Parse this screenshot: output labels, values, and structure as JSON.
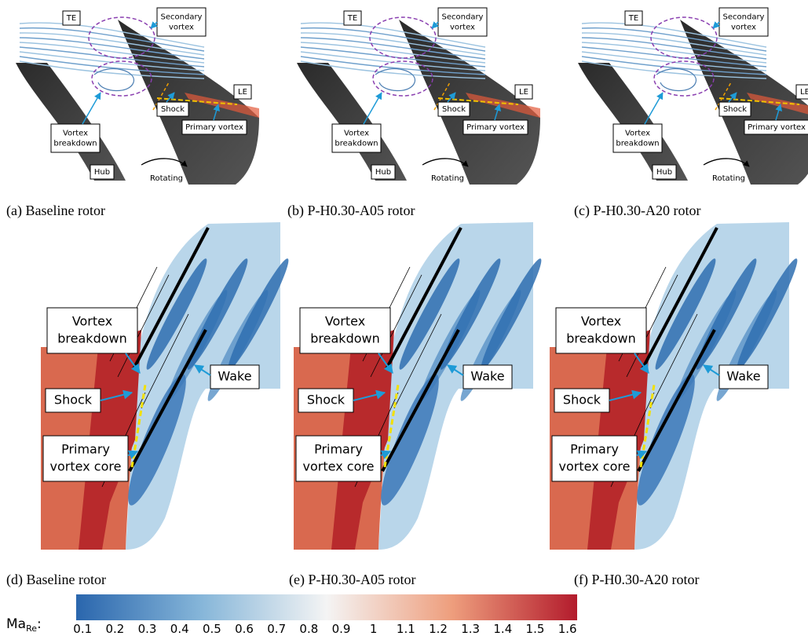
{
  "panels": [
    {
      "caption": "(a) Baseline rotor",
      "labels": {
        "te": "TE",
        "secondary_vortex": [
          "Secondary",
          "vortex"
        ],
        "le": "LE",
        "vortex_breakdown": [
          "Vortex",
          "breakdown"
        ],
        "shock": "Shock",
        "primary_vortex": "Primary vortex",
        "hub": "Hub",
        "rotating": "Rotating"
      }
    },
    {
      "caption": "(b) P-H0.30-A05 rotor",
      "labels": {
        "te": "TE",
        "secondary_vortex": [
          "Secondary",
          "vortex"
        ],
        "le": "LE",
        "vortex_breakdown": [
          "Vortex",
          "breakdown"
        ],
        "shock": "Shock",
        "primary_vortex": "Primary vortex",
        "hub": "Hub",
        "rotating": "Rotating"
      }
    },
    {
      "caption": "(c) P-H0.30-A20 rotor",
      "labels": {
        "te": "TE",
        "secondary_vortex": [
          "Secondary",
          "vortex"
        ],
        "le": "LE",
        "vortex_breakdown": [
          "Vortex",
          "breakdown"
        ],
        "shock": "Shock",
        "primary_vortex": "Primary vortex",
        "hub": "Hub",
        "rotating": "Rotating"
      }
    },
    {
      "caption": "(d) Baseline rotor",
      "labels": {
        "vortex_breakdown": [
          "Vortex",
          "breakdown"
        ],
        "wake": "Wake",
        "shock": "Shock",
        "primary_vortex_core": [
          "Primary",
          "vortex core"
        ]
      }
    },
    {
      "caption": "(e) P-H0.30-A05 rotor",
      "labels": {
        "vortex_breakdown": [
          "Vortex",
          "breakdown"
        ],
        "wake": "Wake",
        "shock": "Shock",
        "primary_vortex_core": [
          "Primary",
          "vortex core"
        ]
      }
    },
    {
      "caption": "(f) P-H0.30-A20 rotor",
      "labels": {
        "vortex_breakdown": [
          "Vortex",
          "breakdown"
        ],
        "wake": "Wake",
        "shock": "Shock",
        "primary_vortex_core": [
          "Primary",
          "vortex core"
        ]
      }
    }
  ],
  "colorbar": {
    "label": "Ma",
    "subscript": "Re",
    "suffix": ":",
    "range": [
      0.08,
      1.63
    ],
    "ticks": [
      0.1,
      0.2,
      0.3,
      0.4,
      0.5,
      0.6,
      0.7,
      0.8,
      0.9,
      1,
      1.1,
      1.2,
      1.3,
      1.4,
      1.5,
      1.6
    ]
  }
}
